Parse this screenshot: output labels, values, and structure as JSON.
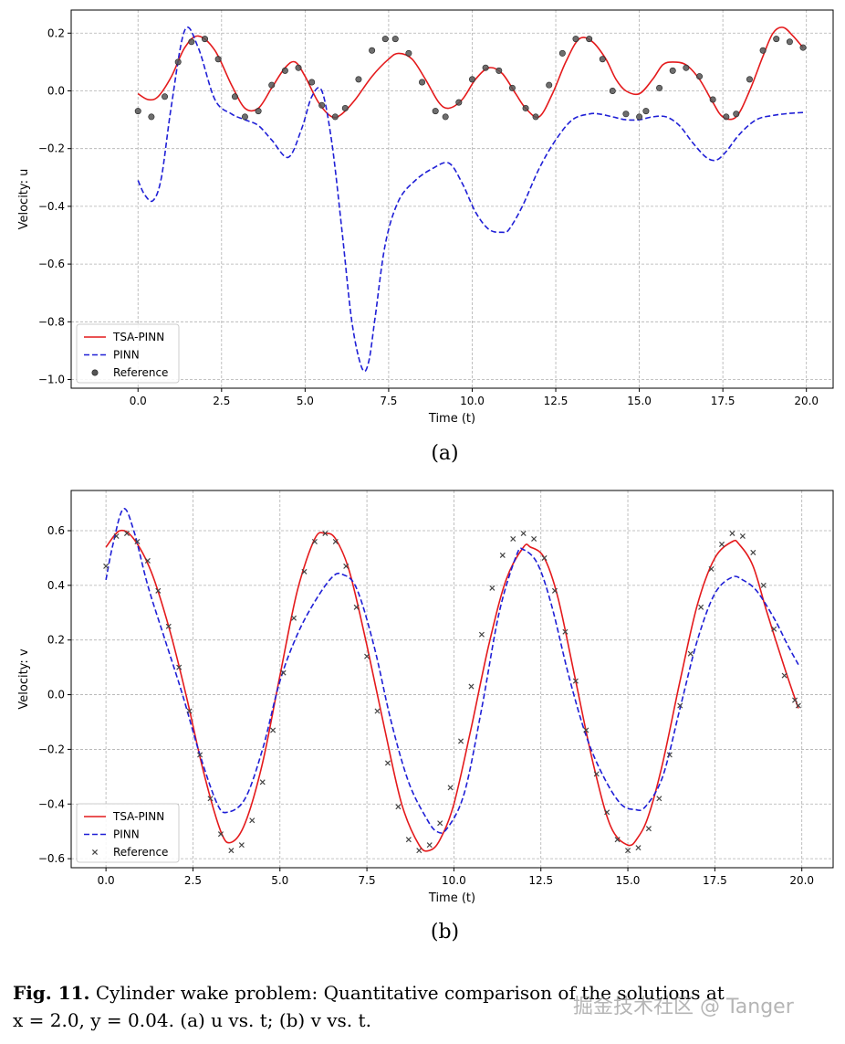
{
  "chart_data": [
    {
      "id": "a",
      "type": "line",
      "sublabel": "(a)",
      "xlabel": "Time (t)",
      "ylabel": "Velocity: u",
      "xlim": [
        -2.0,
        20.8
      ],
      "ylim": [
        -1.03,
        0.28
      ],
      "xticks": [
        0.0,
        2.5,
        5.0,
        7.5,
        10.0,
        12.5,
        15.0,
        17.5,
        20.0
      ],
      "xtick_labels": [
        "0.0",
        "2.5",
        "5.0",
        "7.5",
        "10.0",
        "12.5",
        "15.0",
        "17.5",
        "20.0"
      ],
      "yticks": [
        -1.0,
        -0.8,
        -0.6,
        -0.4,
        -0.2,
        0.0,
        0.2
      ],
      "ytick_labels": [
        "−1.0",
        "−0.8",
        "−0.6",
        "−0.4",
        "−0.2",
        "0.0",
        "0.2"
      ],
      "grid": true,
      "legend_position": "lower-left",
      "series": [
        {
          "name": "TSA-PINN",
          "style": "solid",
          "color": "#e41a1c",
          "x": [
            0.0,
            0.3,
            0.6,
            1.0,
            1.4,
            1.8,
            2.3,
            2.8,
            3.2,
            3.6,
            4.0,
            4.4,
            4.7,
            5.0,
            5.4,
            5.8,
            6.1,
            6.5,
            7.0,
            7.5,
            7.8,
            8.2,
            8.6,
            9.0,
            9.3,
            9.7,
            10.1,
            10.5,
            10.9,
            11.3,
            11.6,
            12.0,
            12.4,
            12.8,
            13.2,
            13.6,
            14.0,
            14.3,
            14.6,
            15.0,
            15.4,
            15.7,
            16.0,
            16.4,
            16.8,
            17.2,
            17.5,
            17.9,
            18.3,
            18.7,
            19.0,
            19.3,
            19.6,
            19.9
          ],
          "y": [
            -0.01,
            -0.03,
            -0.02,
            0.05,
            0.15,
            0.19,
            0.14,
            0.02,
            -0.06,
            -0.06,
            0.01,
            0.08,
            0.1,
            0.05,
            -0.04,
            -0.09,
            -0.08,
            -0.03,
            0.05,
            0.11,
            0.13,
            0.11,
            0.04,
            -0.04,
            -0.06,
            -0.03,
            0.04,
            0.08,
            0.06,
            -0.01,
            -0.06,
            -0.09,
            -0.01,
            0.1,
            0.18,
            0.17,
            0.11,
            0.04,
            0.0,
            -0.01,
            0.04,
            0.09,
            0.1,
            0.09,
            0.04,
            -0.04,
            -0.09,
            -0.09,
            0.0,
            0.12,
            0.2,
            0.22,
            0.19,
            0.15
          ]
        },
        {
          "name": "PINN",
          "style": "dashed",
          "color": "#1f1fd6",
          "x": [
            0.0,
            0.2,
            0.45,
            0.7,
            1.0,
            1.4,
            1.8,
            2.3,
            2.8,
            3.2,
            3.6,
            4.0,
            4.5,
            4.9,
            5.2,
            5.5,
            5.8,
            6.1,
            6.4,
            6.7,
            6.9,
            7.1,
            7.4,
            7.8,
            8.3,
            8.8,
            9.3,
            9.7,
            10.1,
            10.5,
            10.9,
            11.1,
            11.5,
            12.0,
            12.5,
            13.0,
            13.5,
            13.8,
            14.2,
            14.6,
            15.0,
            15.4,
            15.8,
            16.2,
            16.6,
            17.0,
            17.3,
            17.6,
            18.0,
            18.5,
            19.0,
            19.5,
            19.9
          ],
          "y": [
            -0.31,
            -0.36,
            -0.38,
            -0.3,
            -0.05,
            0.21,
            0.15,
            -0.03,
            -0.08,
            -0.1,
            -0.12,
            -0.17,
            -0.23,
            -0.13,
            -0.02,
            0.0,
            -0.18,
            -0.48,
            -0.8,
            -0.96,
            -0.94,
            -0.78,
            -0.53,
            -0.38,
            -0.31,
            -0.27,
            -0.25,
            -0.32,
            -0.42,
            -0.48,
            -0.49,
            -0.48,
            -0.4,
            -0.27,
            -0.17,
            -0.1,
            -0.08,
            -0.08,
            -0.09,
            -0.1,
            -0.1,
            -0.09,
            -0.09,
            -0.12,
            -0.18,
            -0.23,
            -0.24,
            -0.21,
            -0.15,
            -0.1,
            -0.085,
            -0.078,
            -0.075
          ]
        },
        {
          "name": "Reference",
          "style": "markers-o",
          "color": "#555555",
          "x": [
            0.0,
            0.4,
            0.8,
            1.2,
            1.6,
            2.0,
            2.4,
            2.9,
            3.2,
            3.6,
            4.0,
            4.4,
            4.8,
            5.2,
            5.5,
            5.9,
            6.2,
            6.6,
            7.0,
            7.4,
            7.7,
            8.1,
            8.5,
            8.9,
            9.2,
            9.6,
            10.0,
            10.4,
            10.8,
            11.2,
            11.6,
            11.9,
            12.3,
            12.7,
            13.1,
            13.5,
            13.9,
            14.2,
            14.6,
            15.0,
            15.2,
            15.6,
            16.0,
            16.4,
            16.8,
            17.2,
            17.6,
            17.9,
            18.3,
            18.7,
            19.1,
            19.5,
            19.9
          ],
          "y": [
            -0.07,
            -0.09,
            -0.02,
            0.1,
            0.17,
            0.18,
            0.11,
            -0.02,
            -0.09,
            -0.07,
            0.02,
            0.07,
            0.08,
            0.03,
            -0.05,
            -0.09,
            -0.06,
            0.04,
            0.14,
            0.18,
            0.18,
            0.13,
            0.03,
            -0.07,
            -0.09,
            -0.04,
            0.04,
            0.08,
            0.07,
            0.01,
            -0.06,
            -0.09,
            0.02,
            0.13,
            0.18,
            0.18,
            0.11,
            0.0,
            -0.08,
            -0.09,
            -0.07,
            0.01,
            0.07,
            0.08,
            0.05,
            -0.03,
            -0.09,
            -0.08,
            0.04,
            0.14,
            0.18,
            0.17,
            0.15
          ]
        }
      ]
    },
    {
      "id": "b",
      "type": "line",
      "sublabel": "(b)",
      "xlabel": "Time (t)",
      "ylabel": "Velocity: v",
      "xlim": [
        -1.0,
        20.9
      ],
      "ylim": [
        -0.633,
        0.747
      ],
      "xticks": [
        0.0,
        2.5,
        5.0,
        7.5,
        10.0,
        12.5,
        15.0,
        17.5,
        20.0
      ],
      "xtick_labels": [
        "0.0",
        "2.5",
        "5.0",
        "7.5",
        "10.0",
        "12.5",
        "15.0",
        "17.5",
        "20.0"
      ],
      "yticks": [
        -0.6,
        -0.4,
        -0.2,
        0.0,
        0.2,
        0.4,
        0.6
      ],
      "ytick_labels": [
        "−0.6",
        "−0.4",
        "−0.2",
        "0.0",
        "0.2",
        "0.4",
        "0.6"
      ],
      "grid": true,
      "legend_position": "lower-left",
      "series": [
        {
          "name": "TSA-PINN",
          "style": "solid",
          "color": "#e41a1c",
          "x": [
            0.0,
            0.4,
            0.8,
            1.3,
            1.8,
            2.3,
            2.8,
            3.3,
            3.6,
            4.0,
            4.5,
            5.0,
            5.5,
            6.0,
            6.3,
            6.6,
            7.0,
            7.5,
            8.0,
            8.5,
            9.0,
            9.3,
            9.6,
            10.0,
            10.5,
            11.0,
            11.5,
            12.0,
            12.2,
            12.6,
            13.0,
            13.5,
            14.0,
            14.5,
            15.0,
            15.3,
            15.6,
            16.0,
            16.5,
            17.0,
            17.5,
            18.0,
            18.2,
            18.6,
            19.0,
            19.5,
            19.9
          ],
          "y": [
            0.54,
            0.6,
            0.57,
            0.45,
            0.25,
            0.0,
            -0.28,
            -0.5,
            -0.54,
            -0.47,
            -0.25,
            0.07,
            0.38,
            0.57,
            0.59,
            0.57,
            0.45,
            0.18,
            -0.12,
            -0.4,
            -0.55,
            -0.57,
            -0.53,
            -0.4,
            -0.12,
            0.18,
            0.42,
            0.54,
            0.54,
            0.5,
            0.35,
            0.05,
            -0.25,
            -0.48,
            -0.55,
            -0.52,
            -0.44,
            -0.25,
            0.05,
            0.33,
            0.5,
            0.56,
            0.55,
            0.47,
            0.3,
            0.1,
            -0.05
          ]
        },
        {
          "name": "PINN",
          "style": "dashed",
          "color": "#1f1fd6",
          "x": [
            0.0,
            0.2,
            0.5,
            0.8,
            1.2,
            1.7,
            2.2,
            2.7,
            3.2,
            3.5,
            4.0,
            4.5,
            5.0,
            5.5,
            6.0,
            6.5,
            6.8,
            7.2,
            7.7,
            8.2,
            8.7,
            9.2,
            9.5,
            9.8,
            10.3,
            10.8,
            11.3,
            11.8,
            12.0,
            12.4,
            12.8,
            13.3,
            13.8,
            14.3,
            14.8,
            15.2,
            15.5,
            16.0,
            16.5,
            17.0,
            17.5,
            18.0,
            18.3,
            18.7,
            19.2,
            19.6,
            19.9
          ],
          "y": [
            0.42,
            0.55,
            0.68,
            0.6,
            0.4,
            0.2,
            0.0,
            -0.22,
            -0.4,
            -0.43,
            -0.38,
            -0.2,
            0.05,
            0.22,
            0.34,
            0.43,
            0.44,
            0.39,
            0.18,
            -0.1,
            -0.32,
            -0.45,
            -0.5,
            -0.49,
            -0.36,
            -0.05,
            0.3,
            0.51,
            0.53,
            0.48,
            0.33,
            0.07,
            -0.15,
            -0.3,
            -0.4,
            -0.42,
            -0.41,
            -0.3,
            -0.05,
            0.2,
            0.37,
            0.43,
            0.42,
            0.38,
            0.28,
            0.18,
            0.11
          ]
        },
        {
          "name": "Reference",
          "style": "markers-x",
          "color": "#444444",
          "x": [
            0.0,
            0.3,
            0.6,
            0.9,
            1.2,
            1.5,
            1.8,
            2.1,
            2.4,
            2.7,
            3.0,
            3.3,
            3.6,
            3.9,
            4.2,
            4.5,
            4.8,
            5.1,
            5.4,
            5.7,
            6.0,
            6.3,
            6.6,
            6.9,
            7.2,
            7.5,
            7.8,
            8.1,
            8.4,
            8.7,
            9.0,
            9.3,
            9.6,
            9.9,
            10.2,
            10.5,
            10.8,
            11.1,
            11.4,
            11.7,
            12.0,
            12.3,
            12.6,
            12.9,
            13.2,
            13.5,
            13.8,
            14.1,
            14.4,
            14.7,
            15.0,
            15.3,
            15.6,
            15.9,
            16.2,
            16.5,
            16.8,
            17.1,
            17.4,
            17.7,
            18.0,
            18.3,
            18.6,
            18.9,
            19.2,
            19.5,
            19.8,
            19.9
          ],
          "y": [
            0.47,
            0.58,
            0.59,
            0.56,
            0.49,
            0.38,
            0.25,
            0.1,
            -0.06,
            -0.22,
            -0.38,
            -0.51,
            -0.57,
            -0.55,
            -0.46,
            -0.32,
            -0.13,
            0.08,
            0.28,
            0.45,
            0.56,
            0.59,
            0.56,
            0.47,
            0.32,
            0.14,
            -0.06,
            -0.25,
            -0.41,
            -0.53,
            -0.57,
            -0.55,
            -0.47,
            -0.34,
            -0.17,
            0.03,
            0.22,
            0.39,
            0.51,
            0.57,
            0.59,
            0.57,
            0.5,
            0.38,
            0.23,
            0.05,
            -0.13,
            -0.29,
            -0.43,
            -0.53,
            -0.57,
            -0.56,
            -0.49,
            -0.38,
            -0.22,
            -0.04,
            0.15,
            0.32,
            0.46,
            0.55,
            0.59,
            0.58,
            0.52,
            0.4,
            0.24,
            0.07,
            -0.02,
            -0.04
          ]
        }
      ]
    }
  ],
  "caption": {
    "label": "Fig. 11.",
    "text": "Cylinder wake problem: Quantitative comparison of the solutions at",
    "line2": "x = 2.0,  y = 0.04. (a) u vs. t; (b) v vs. t."
  },
  "watermark": "掘金技术社区 @ Tanger"
}
